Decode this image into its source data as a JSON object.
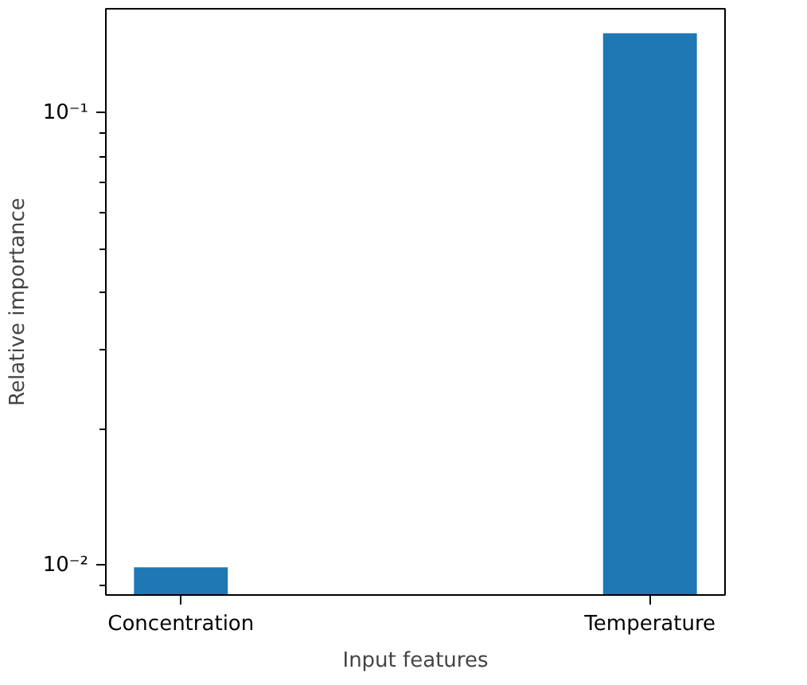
{
  "chart_data": {
    "type": "bar",
    "xlabel": "Input features",
    "ylabel": "Relative importance",
    "categories": [
      "Concentration",
      "Temperature"
    ],
    "values": [
      0.0099,
      0.15
    ],
    "color": "#1f77b4",
    "log": "y",
    "ylim": [
      0.0086,
      0.17
    ],
    "yticks": [
      {
        "value": 0.01,
        "label": "10⁻²"
      },
      {
        "value": 0.1,
        "label": "10⁻¹"
      },
      {
        "value": 0.009,
        "label": null
      },
      {
        "value": 0.02,
        "label": null
      },
      {
        "value": 0.03,
        "label": null
      },
      {
        "value": 0.04,
        "label": null
      },
      {
        "value": 0.05,
        "label": null
      },
      {
        "value": 0.06,
        "label": null
      },
      {
        "value": 0.07,
        "label": null
      },
      {
        "value": 0.08,
        "label": null
      },
      {
        "value": 0.09,
        "label": null
      }
    ],
    "grid": false
  }
}
